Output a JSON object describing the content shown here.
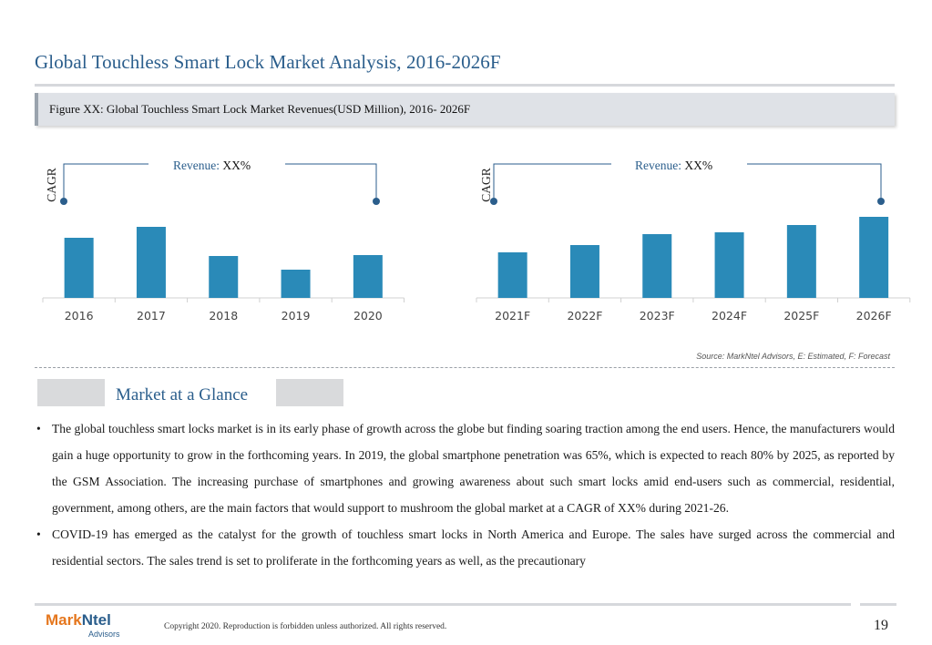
{
  "page": {
    "title": "Global Touchless Smart Lock Market Analysis, 2016-2026F",
    "figure_caption": "Figure XX: Global Touchless Smart Lock Market Revenues(USD Million), 2016- 2026F",
    "source": "Source: MarkNtel Advisors, E: Estimated, F: Forecast",
    "section_title": "Market at a Glance",
    "bullets": [
      "The global touchless smart locks market is in its early phase of growth across the globe but finding soaring traction among the end users. Hence, the manufacturers would gain a huge opportunity to grow in the forthcoming years. In 2019, the global smartphone penetration was 65%, which is expected to reach 80% by 2025, as reported by the GSM Association. The increasing purchase of smartphones and growing awareness about such smart locks amid end-users such as commercial, residential, government, among others, are the main factors that would support to mushroom the global market at a CAGR of XX% during 2021-26.",
      "COVID-19 has emerged as the catalyst for the growth of touchless smart locks in North America and Europe. The sales have surged across the commercial and residential sectors. The sales trend is set to proliferate in the forthcoming years as well, as the precautionary"
    ],
    "copyright": "Copyright 2020. Reproduction is forbidden unless authorized. All rights reserved.",
    "page_number": "19",
    "logo": {
      "part1": "Mark",
      "part2": "Ntel",
      "sub": "Advisors"
    }
  },
  "colors": {
    "bar": "#2a8ab8",
    "accent": "#2b5e8c",
    "logo_orange": "#e5771e"
  },
  "chart_data": [
    {
      "type": "bar",
      "categories": [
        "2016",
        "2017",
        "2018",
        "2019",
        "2020"
      ],
      "values": [
        66,
        78,
        46,
        31,
        47
      ],
      "ylim": [
        0,
        100
      ],
      "annotation": {
        "revenue_label": "Revenue:",
        "revenue_value": "XX%",
        "cagr_label": "CAGR"
      }
    },
    {
      "type": "bar",
      "categories": [
        "2021F",
        "2022F",
        "2023F",
        "2024F",
        "2025F",
        "2026F"
      ],
      "values": [
        50,
        58,
        70,
        72,
        80,
        89
      ],
      "ylim": [
        0,
        100
      ],
      "annotation": {
        "revenue_label": "Revenue:",
        "revenue_value": "XX%",
        "cagr_label": "CAGR"
      }
    }
  ]
}
